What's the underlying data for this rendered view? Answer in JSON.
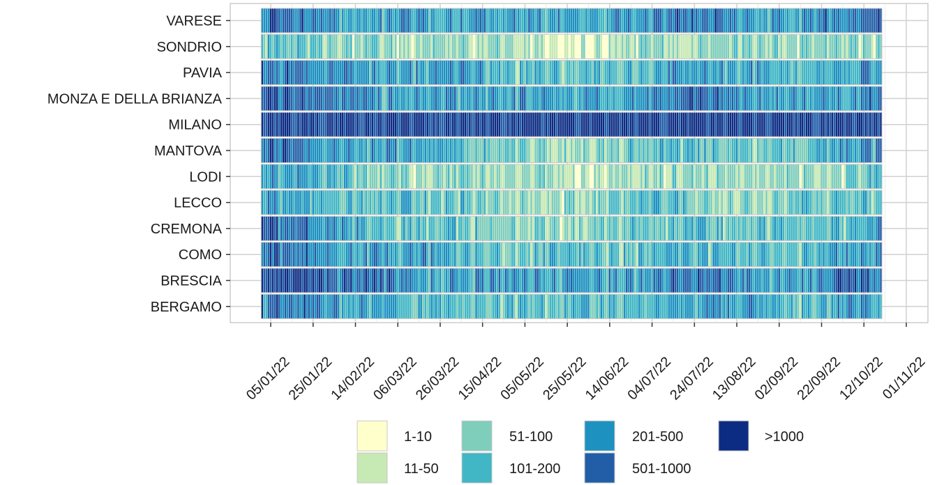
{
  "chart_data": {
    "type": "heatmap",
    "title": "",
    "xlabel": "",
    "ylabel": "",
    "date_range": [
      "2022-01-01",
      "2022-10-20"
    ],
    "rows": [
      "VARESE",
      "SONDRIO",
      "PAVIA",
      "MONZA E DELLA BRIANZA",
      "MILANO",
      "MANTOVA",
      "LODI",
      "LECCO",
      "CREMONA",
      "COMO",
      "BRESCIA",
      "BERGAMO"
    ],
    "x_ticks": [
      "05/01/22",
      "25/01/22",
      "14/02/22",
      "06/03/22",
      "26/03/22",
      "15/04/22",
      "05/05/22",
      "25/05/22",
      "14/06/22",
      "04/07/22",
      "24/07/22",
      "13/08/22",
      "02/09/22",
      "22/09/22",
      "12/10/22",
      "01/11/22"
    ],
    "legend": [
      {
        "label": "1-10",
        "color": "#ffffcc"
      },
      {
        "label": "11-50",
        "color": "#c7e9b4"
      },
      {
        "label": "51-100",
        "color": "#7fcdbb"
      },
      {
        "label": "101-200",
        "color": "#41b6c4"
      },
      {
        "label": "201-500",
        "color": "#1d91c0"
      },
      {
        "label": "501-1000",
        "color": "#225ea8"
      },
      {
        "label": ">1000",
        "color": "#0c2c84"
      }
    ],
    "typical_level_by_row": {
      "VARESE": [
        5,
        5,
        4,
        4,
        4,
        4,
        4,
        4,
        4,
        4,
        5,
        5,
        4,
        4,
        5,
        5
      ],
      "SONDRIO": [
        3,
        3,
        2,
        2,
        2,
        2,
        2,
        1,
        1,
        2,
        2,
        2,
        2,
        2,
        2,
        2
      ],
      "PAVIA": [
        5,
        5,
        4,
        4,
        4,
        4,
        3,
        3,
        3,
        3,
        4,
        4,
        4,
        3,
        4,
        4
      ],
      "MONZA E DELLA BRIANZA": [
        6,
        5,
        5,
        4,
        4,
        4,
        4,
        4,
        4,
        4,
        5,
        5,
        4,
        4,
        4,
        5
      ],
      "MILANO": [
        6,
        6,
        6,
        6,
        6,
        6,
        6,
        6,
        6,
        6,
        6,
        6,
        6,
        6,
        6,
        6
      ],
      "MANTOVA": [
        5,
        5,
        4,
        4,
        4,
        3,
        3,
        2,
        2,
        3,
        3,
        3,
        3,
        3,
        4,
        4
      ],
      "LODI": [
        4,
        4,
        3,
        2,
        2,
        2,
        2,
        2,
        1,
        2,
        2,
        2,
        2,
        2,
        2,
        3
      ],
      "LECCO": [
        4,
        4,
        3,
        3,
        3,
        3,
        2,
        2,
        2,
        3,
        3,
        2,
        2,
        3,
        3,
        3
      ],
      "CREMONA": [
        5,
        5,
        4,
        3,
        3,
        3,
        2,
        2,
        2,
        3,
        3,
        3,
        3,
        3,
        3,
        4
      ],
      "COMO": [
        5,
        5,
        4,
        4,
        4,
        3,
        3,
        3,
        3,
        3,
        4,
        3,
        3,
        3,
        4,
        4
      ],
      "BRESCIA": [
        6,
        6,
        5,
        5,
        4,
        4,
        4,
        4,
        4,
        4,
        5,
        5,
        4,
        4,
        5,
        5
      ],
      "BERGAMO": [
        5,
        5,
        4,
        4,
        3,
        3,
        3,
        3,
        3,
        3,
        4,
        4,
        4,
        3,
        4,
        4
      ]
    }
  }
}
